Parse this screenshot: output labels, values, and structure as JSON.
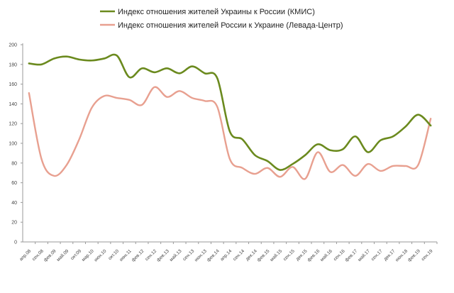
{
  "chart_data": {
    "type": "line",
    "title": "",
    "xlabel": "",
    "ylabel": "",
    "ylim": [
      0,
      200
    ],
    "yticks": [
      0,
      20,
      40,
      60,
      80,
      100,
      120,
      140,
      160,
      180,
      200
    ],
    "grid": false,
    "legend_position": "top",
    "x_tick_labels": [
      "апр.08",
      "сен.08",
      "фев.09",
      "май.09",
      "окт.09",
      "мар.10",
      "июн.10",
      "окт.10",
      "июн.11",
      "фев.12",
      "сен.12",
      "фев.13",
      "май.13",
      "сен.13",
      "июн.13",
      "фев.14",
      "апр.14",
      "сен.14",
      "дек.14",
      "фев.15",
      "май.15",
      "сен.15",
      "дек.15",
      "фев.16",
      "май.16",
      "сен.16",
      "фев.17",
      "май.17",
      "сен.17",
      "дек.17",
      "июн.18",
      "фев.19",
      "сен.19"
    ],
    "series": [
      {
        "name": "Индекс отношения жителей Украины к России (КМИС)",
        "color": "#6b8a1e",
        "values": [
          181,
          180,
          186,
          188,
          185,
          184,
          186,
          189,
          167,
          176,
          172,
          176,
          171,
          178,
          171,
          166,
          112,
          104,
          88,
          82,
          73,
          79,
          88,
          99,
          93,
          94,
          107,
          91,
          103,
          107,
          117,
          129,
          118
        ]
      },
      {
        "name": "Индекс отношения жителей России к Украине (Левада-Центр)",
        "color": "#e8a090",
        "values": [
          151,
          84,
          67,
          78,
          104,
          136,
          148,
          146,
          144,
          139,
          157,
          147,
          153,
          146,
          143,
          137,
          84,
          75,
          69,
          75,
          66,
          76,
          64,
          91,
          71,
          78,
          67,
          79,
          72,
          77,
          77,
          78,
          125
        ]
      }
    ]
  },
  "colors": {
    "axis": "#9a9a9a",
    "green": "#6b8a1e",
    "salmon": "#e8a090"
  }
}
